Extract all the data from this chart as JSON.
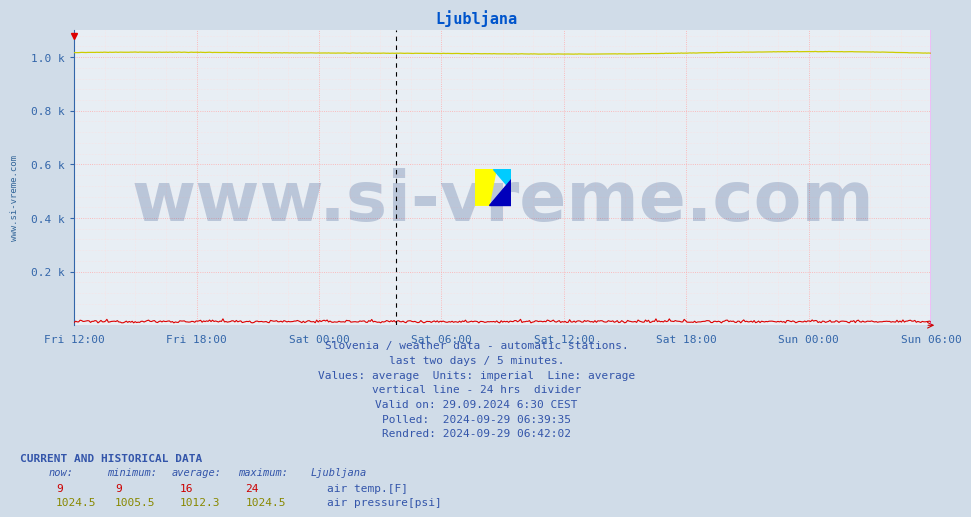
{
  "title": "Ljubljana",
  "title_color": "#0055cc",
  "background_color": "#d0dce8",
  "plot_bg_color": "#e8eef4",
  "fig_size": [
    9.47,
    5.22
  ],
  "dpi": 100,
  "ylim": [
    0,
    1100
  ],
  "yticks": [
    200,
    400,
    600,
    800,
    1000
  ],
  "ytick_labels": [
    "0.2 k",
    "0.4 k",
    "0.6 k",
    "0.8 k",
    "1.0 k"
  ],
  "xtick_labels": [
    "Fri 12:00",
    "Fri 18:00",
    "Sat 00:00",
    "Sat 06:00",
    "Sat 12:00",
    "Sat 18:00",
    "Sun 00:00",
    "Sun 06:00"
  ],
  "n_points": 577,
  "temp_color": "#dd0000",
  "pressure_color": "#cccc00",
  "divider_color_24h": "#000000",
  "divider_color_end": "#ff00ff",
  "axis_color": "#3366aa",
  "grid_color_major": "#ffaaaa",
  "grid_color_minor": "#ffdddd",
  "watermark_text": "www.si-vreme.com",
  "watermark_color": "#1a3a7a",
  "watermark_alpha": 0.22,
  "watermark_fontsize": 50,
  "sidebar_text": "www.si-vreme.com",
  "sidebar_color": "#336699",
  "sidebar_fontsize": 6.5,
  "footer_lines": [
    "Slovenia / weather data - automatic stations.",
    "last two days / 5 minutes.",
    "Values: average  Units: imperial  Line: average",
    "vertical line - 24 hrs  divider",
    "Valid on: 29.09.2024 6:30 CEST",
    "Polled:  2024-09-29 06:39:35",
    "Rendred: 2024-09-29 06:42:02"
  ],
  "footer_color": "#3355aa",
  "footer_fontsize": 8,
  "table_header": "CURRENT AND HISTORICAL DATA",
  "table_header_color": "#3355aa",
  "col_labels": [
    "now:",
    "minimum:",
    "average:",
    "maximum:",
    "Ljubljana"
  ],
  "temp_row": [
    "9",
    "9",
    "16",
    "24"
  ],
  "pressure_row": [
    "1024.5",
    "1005.5",
    "1012.3",
    "1024.5"
  ],
  "temp_label": "air temp.[F]",
  "pressure_label": "air pressure[psi]",
  "temp_row_color": "#cc0000",
  "pressure_row_color": "#888800",
  "label_color": "#3355aa"
}
